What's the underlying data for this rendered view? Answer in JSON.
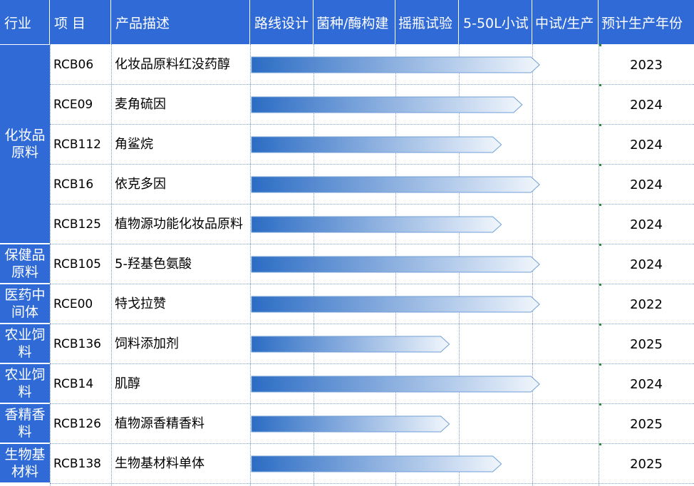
{
  "headers": {
    "industry": "行业",
    "item": "项 目",
    "description": "产品描述",
    "stages": [
      "路线设计",
      "菌种/酶构建",
      "摇瓶试验",
      "5-50L小试",
      "中试/生产"
    ],
    "year": "预计生产年份"
  },
  "industries": [
    {
      "label": "化妆品原料",
      "rows": 5
    },
    {
      "label": "保健品原料",
      "rows": 1
    },
    {
      "label": "医药中间体",
      "rows": 1
    },
    {
      "label": "农业饲料",
      "rows": 1
    },
    {
      "label": "农业饲料",
      "rows": 1
    },
    {
      "label": "香精香料",
      "rows": 1
    },
    {
      "label": "生物基材料",
      "rows": 1
    }
  ],
  "rows": [
    {
      "code": "RCB06",
      "desc": "化妆品原料红没药醇",
      "progress": 0.83,
      "year": "2023"
    },
    {
      "code": "RCE09",
      "desc": "麦角硫因",
      "progress": 0.78,
      "year": "2024"
    },
    {
      "code": "RCB112",
      "desc": "角鲨烷",
      "progress": 0.72,
      "year": "2024"
    },
    {
      "code": "RCB16",
      "desc": "依克多因",
      "progress": 0.83,
      "year": "2024"
    },
    {
      "code": "RCB125",
      "desc": "植物源功能化妆品原料",
      "progress": 0.72,
      "year": "2024"
    },
    {
      "code": "RCB105",
      "desc": "5-羟基色氨酸",
      "progress": 0.83,
      "year": "2024"
    },
    {
      "code": "RCE00",
      "desc": "特戈拉赞",
      "progress": 0.83,
      "year": "2022"
    },
    {
      "code": "RCB136",
      "desc": "饲料添加剂",
      "progress": 0.57,
      "year": "2025"
    },
    {
      "code": "RCB14",
      "desc": "肌醇",
      "progress": 0.83,
      "year": "2024"
    },
    {
      "code": "RCB126",
      "desc": "植物源香精香料",
      "progress": 0.57,
      "year": "2025"
    },
    {
      "code": "RCB138",
      "desc": "生物基材料单体",
      "progress": 0.72,
      "year": "2025"
    }
  ],
  "colors": {
    "header_bg": "#2f6ad6",
    "bar_start": "#2b6cc4",
    "bar_end": "#f1f6fc",
    "grid": "#7a9ccf"
  }
}
